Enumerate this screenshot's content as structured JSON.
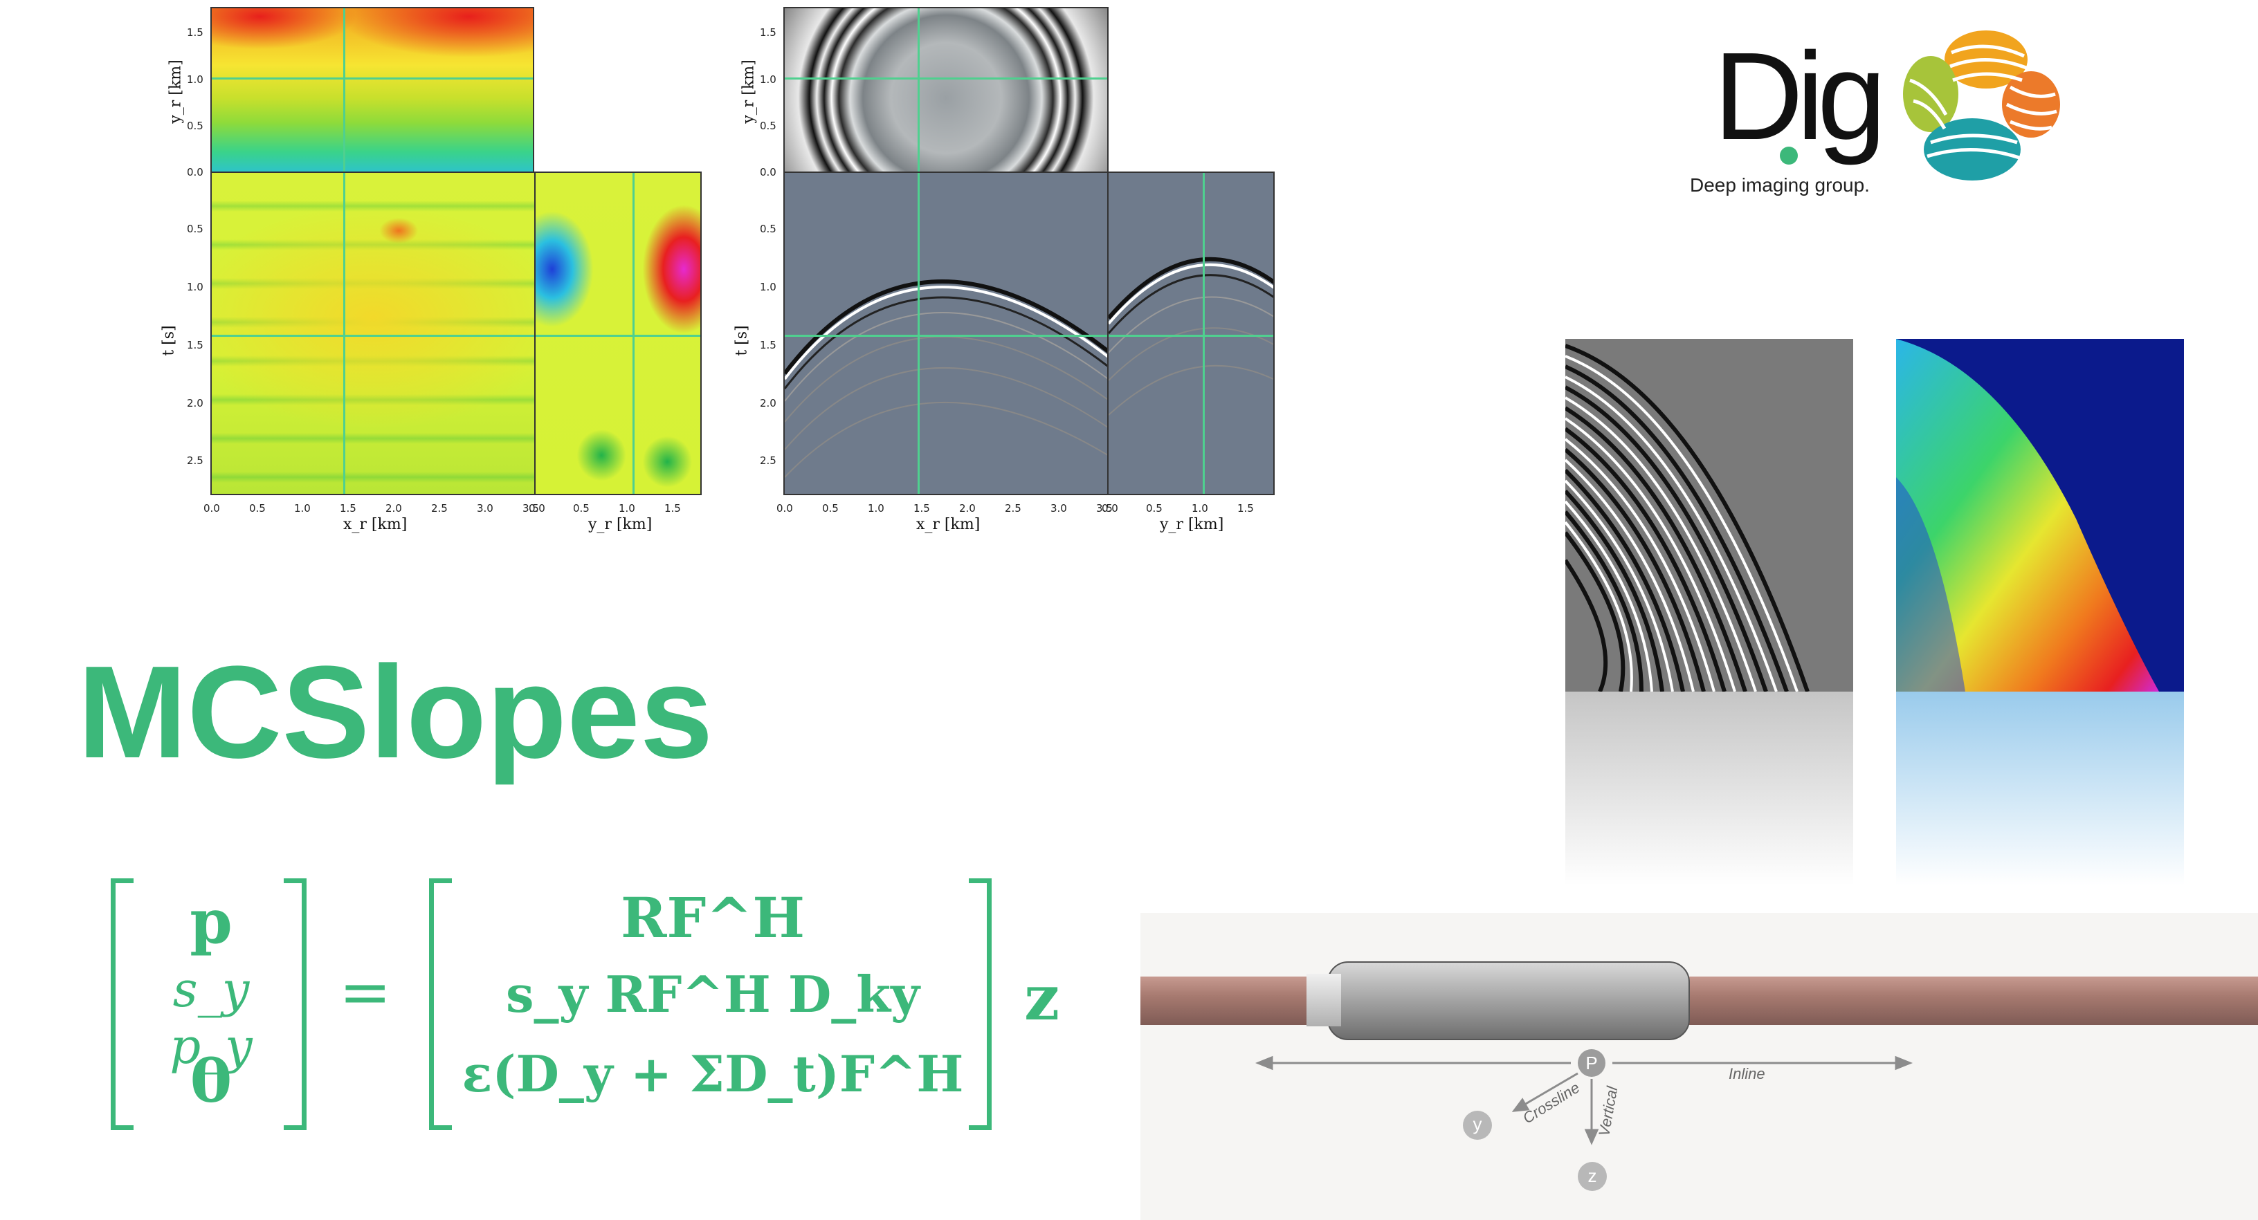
{
  "title": "MCSlopes",
  "logo": {
    "dig_text": "Dig",
    "tagline": "Deep imaging group."
  },
  "panels_left": {
    "top_ylabel": "y_r [km]",
    "main_ylabel": "t [s]",
    "xlabel_main": "x_r [km]",
    "xlabel_side": "y_r [km]",
    "top_yticks": [
      "1.5",
      "1.0",
      "0.5",
      "0.0"
    ],
    "main_yticks": [
      "0.5",
      "1.0",
      "1.5",
      "2.0",
      "2.5"
    ],
    "main_xticks": [
      "0.0",
      "0.5",
      "1.0",
      "1.5",
      "2.0",
      "2.5",
      "3.0",
      "3.5"
    ],
    "side_xticks": [
      "0.0",
      "0.5",
      "1.0",
      "1.5"
    ]
  },
  "panels_right": {
    "top_ylabel": "y_r [km]",
    "main_ylabel": "t [s]",
    "xlabel_main": "x_r [km]",
    "xlabel_side": "y_r [km]",
    "top_yticks": [
      "1.5",
      "1.0",
      "0.5",
      "0.0"
    ],
    "main_yticks": [
      "0.5",
      "1.0",
      "1.5",
      "2.0",
      "2.5"
    ],
    "main_xticks": [
      "0.0",
      "0.5",
      "1.0",
      "1.5",
      "2.0",
      "2.5",
      "3.0",
      "3.5"
    ],
    "side_xticks": [
      "0.0",
      "0.5",
      "1.0",
      "1.5"
    ]
  },
  "cable_labels": {
    "p": "P",
    "inline": "Inline",
    "crossline": "Crossline",
    "vertical": "Vertical",
    "y": "y",
    "z": "z"
  },
  "equation": {
    "lhs": [
      "p",
      "s_y p_y",
      "0"
    ],
    "rhs": [
      "RF^H",
      "s_y RF^H D_ky",
      "ε(D_y + ΣD_t)F^H"
    ],
    "z": "z"
  },
  "colors": {
    "accent": "#3cb87a",
    "crosshair": "#4fd08f"
  }
}
